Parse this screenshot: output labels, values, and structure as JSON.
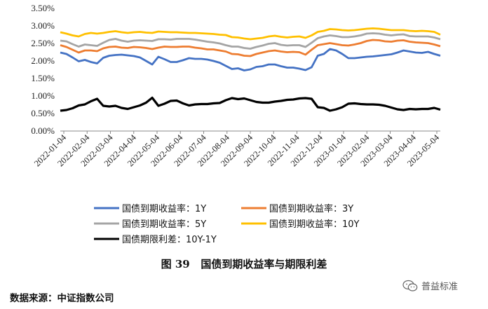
{
  "figure": {
    "caption": "图 39   国债到期收益率与期限利差",
    "source": "数据来源：中证指数公司",
    "watermark": "普益标准",
    "watermark_icon": "wechat-icon"
  },
  "chart_data": {
    "type": "line",
    "title": "",
    "xlabel": "",
    "ylabel": "",
    "ylim": [
      0,
      3.5
    ],
    "y_ticks": [
      "0.00%",
      "0.50%",
      "1.00%",
      "1.50%",
      "2.00%",
      "2.50%",
      "3.00%",
      "3.50%"
    ],
    "x_ticks": [
      "2022-01-04",
      "2022-02-04",
      "2022-03-04",
      "2022-04-04",
      "2022-05-04",
      "2022-06-04",
      "2022-07-04",
      "2022-08-04",
      "2022-09-04",
      "2022-10-04",
      "2022-11-04",
      "2022-12-04",
      "2023-01-04",
      "2023-02-04",
      "2023-03-04",
      "2023-04-04",
      "2023-05-04"
    ],
    "grid": false,
    "legend_position": "bottom",
    "series": [
      {
        "name": "国债到期收益率：1Y",
        "color": "#4472C4",
        "values": [
          2.24,
          2.2,
          2.1,
          1.99,
          2.03,
          1.97,
          1.93,
          2.09,
          2.15,
          2.17,
          2.18,
          2.16,
          2.14,
          2.1,
          2.0,
          1.9,
          2.12,
          2.05,
          1.97,
          1.97,
          2.02,
          2.08,
          2.06,
          2.06,
          2.04,
          2.0,
          1.95,
          1.86,
          1.77,
          1.79,
          1.73,
          1.76,
          1.83,
          1.85,
          1.9,
          1.9,
          1.85,
          1.81,
          1.81,
          1.78,
          1.74,
          1.82,
          2.15,
          2.2,
          2.34,
          2.3,
          2.2,
          2.08,
          2.08,
          2.1,
          2.12,
          2.13,
          2.15,
          2.17,
          2.19,
          2.24,
          2.3,
          2.27,
          2.24,
          2.23,
          2.26,
          2.2,
          2.15
        ]
      },
      {
        "name": "国债到期收益率：3Y",
        "color": "#ED7D31",
        "values": [
          2.45,
          2.4,
          2.32,
          2.24,
          2.3,
          2.3,
          2.28,
          2.36,
          2.4,
          2.41,
          2.38,
          2.37,
          2.4,
          2.39,
          2.37,
          2.34,
          2.38,
          2.41,
          2.4,
          2.4,
          2.41,
          2.41,
          2.38,
          2.36,
          2.33,
          2.33,
          2.3,
          2.27,
          2.2,
          2.19,
          2.15,
          2.14,
          2.2,
          2.24,
          2.28,
          2.3,
          2.27,
          2.25,
          2.26,
          2.25,
          2.18,
          2.32,
          2.45,
          2.48,
          2.51,
          2.48,
          2.45,
          2.44,
          2.47,
          2.51,
          2.57,
          2.6,
          2.59,
          2.56,
          2.55,
          2.58,
          2.59,
          2.55,
          2.53,
          2.52,
          2.51,
          2.47,
          2.42
        ]
      },
      {
        "name": "国债到期收益率：5Y",
        "color": "#A5A5A5",
        "values": [
          2.58,
          2.56,
          2.48,
          2.41,
          2.47,
          2.45,
          2.43,
          2.52,
          2.6,
          2.63,
          2.58,
          2.55,
          2.58,
          2.59,
          2.58,
          2.57,
          2.62,
          2.62,
          2.61,
          2.63,
          2.63,
          2.63,
          2.61,
          2.58,
          2.55,
          2.53,
          2.5,
          2.45,
          2.41,
          2.41,
          2.37,
          2.35,
          2.4,
          2.44,
          2.49,
          2.51,
          2.46,
          2.44,
          2.45,
          2.45,
          2.4,
          2.52,
          2.65,
          2.7,
          2.73,
          2.71,
          2.68,
          2.68,
          2.7,
          2.73,
          2.78,
          2.79,
          2.78,
          2.75,
          2.73,
          2.75,
          2.76,
          2.71,
          2.7,
          2.7,
          2.7,
          2.67,
          2.62
        ]
      },
      {
        "name": "国债到期收益率：10Y",
        "color": "#FFC000",
        "values": [
          2.82,
          2.78,
          2.73,
          2.7,
          2.77,
          2.8,
          2.78,
          2.8,
          2.83,
          2.85,
          2.82,
          2.8,
          2.82,
          2.83,
          2.81,
          2.8,
          2.84,
          2.83,
          2.82,
          2.82,
          2.81,
          2.8,
          2.8,
          2.79,
          2.78,
          2.77,
          2.75,
          2.74,
          2.68,
          2.67,
          2.64,
          2.62,
          2.64,
          2.66,
          2.7,
          2.72,
          2.69,
          2.67,
          2.69,
          2.7,
          2.66,
          2.73,
          2.83,
          2.86,
          2.91,
          2.9,
          2.88,
          2.87,
          2.88,
          2.9,
          2.92,
          2.93,
          2.92,
          2.9,
          2.88,
          2.88,
          2.88,
          2.86,
          2.85,
          2.86,
          2.85,
          2.83,
          2.75
        ]
      },
      {
        "name": "国债期限利差：10Y-1Y",
        "color": "#000000",
        "values": [
          0.58,
          0.6,
          0.65,
          0.73,
          0.76,
          0.85,
          0.92,
          0.72,
          0.7,
          0.72,
          0.66,
          0.63,
          0.68,
          0.73,
          0.81,
          0.95,
          0.72,
          0.78,
          0.86,
          0.87,
          0.79,
          0.73,
          0.76,
          0.77,
          0.77,
          0.79,
          0.8,
          0.88,
          0.94,
          0.91,
          0.93,
          0.88,
          0.83,
          0.81,
          0.81,
          0.84,
          0.86,
          0.89,
          0.9,
          0.93,
          0.94,
          0.92,
          0.68,
          0.66,
          0.58,
          0.62,
          0.68,
          0.78,
          0.79,
          0.77,
          0.76,
          0.76,
          0.75,
          0.72,
          0.67,
          0.62,
          0.6,
          0.63,
          0.62,
          0.63,
          0.63,
          0.66,
          0.61
        ]
      }
    ]
  }
}
